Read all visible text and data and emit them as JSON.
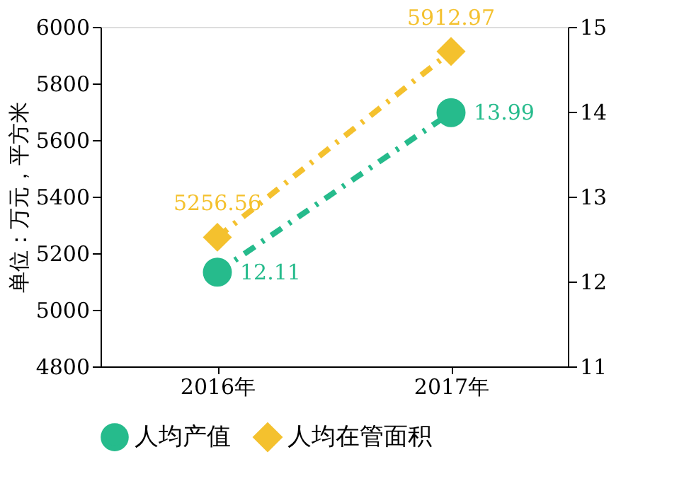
{
  "chart_data": {
    "type": "line",
    "ylabel": "单位：万元，平方米",
    "categories": [
      "2016年",
      "2017年"
    ],
    "series": [
      {
        "name": "人均产值",
        "color": "#26bb8c",
        "values": [
          12.11,
          13.99
        ],
        "axis": "y2",
        "marker": "circle"
      },
      {
        "name": "人均在管面积",
        "color": "#f4c12e",
        "values": [
          5256.56,
          5912.97
        ],
        "marker": "diamond"
      }
    ],
    "ylim": [
      4800,
      6000
    ],
    "yticks": [
      4800,
      5000,
      5200,
      5400,
      5600,
      5800,
      6000
    ],
    "y2lim": [
      11,
      15
    ],
    "y2ticks": [
      11,
      12,
      13,
      14,
      15
    ],
    "line_style": "dashed",
    "data_labels": true,
    "grid": false,
    "legend": "bottom"
  }
}
